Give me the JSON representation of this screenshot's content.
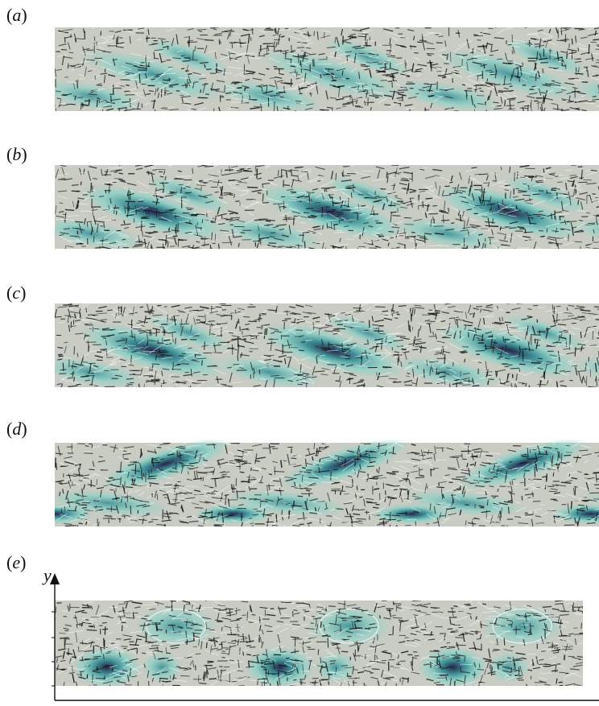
{
  "panels": [
    {
      "label": "a",
      "mode": "two-row",
      "intensity": 0.55
    },
    {
      "label": "b",
      "mode": "two-row",
      "intensity": 0.95
    },
    {
      "label": "c",
      "mode": "two-row",
      "intensity": 1.0
    },
    {
      "label": "d",
      "mode": "split",
      "intensity": 0.9
    },
    {
      "label": "e",
      "mode": "vortex",
      "intensity": 1.0
    }
  ],
  "axis": {
    "ylabel": "y"
  },
  "colors": {
    "background": "#c8ccc3",
    "deep": "#24264a",
    "mid": "#3a8f96",
    "light": "#7fd3c8",
    "streak": "#ffffff",
    "arrow": "#111111"
  }
}
